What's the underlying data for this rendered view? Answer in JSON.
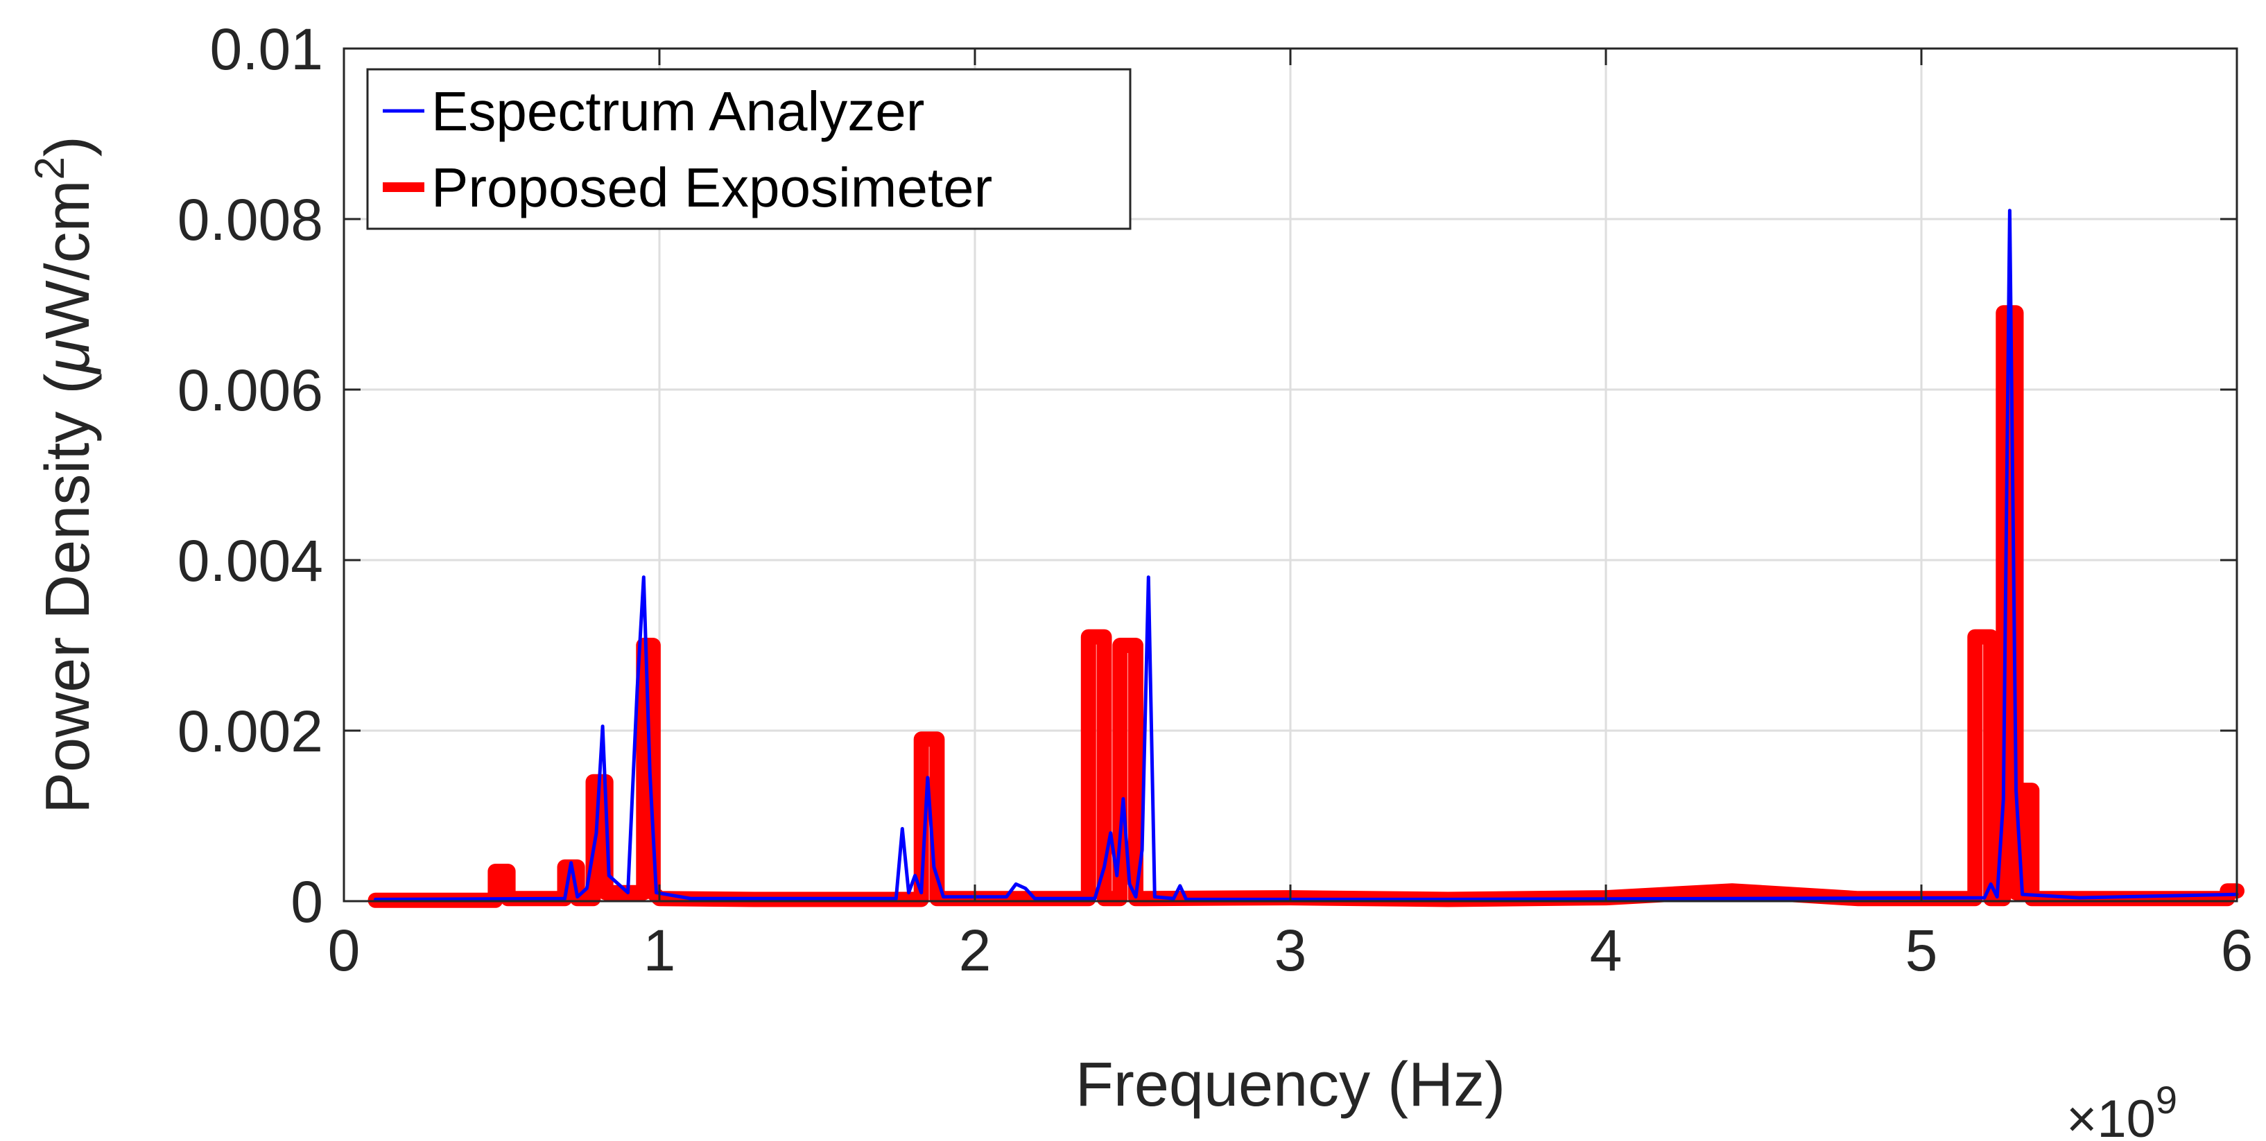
{
  "chart_data": {
    "type": "line",
    "xlabel": "Frequency (Hz)",
    "ylabel_prefix": "Power Density (",
    "ylabel_mu": "μ",
    "ylabel_unit": "W/cm",
    "ylabel_sup": "2",
    "ylabel_suffix": ")",
    "x_multiplier": "×10",
    "x_multiplier_exp": "9",
    "xlim": [
      0,
      6
    ],
    "ylim": [
      0,
      0.01
    ],
    "x_ticks": [
      0,
      1,
      2,
      3,
      4,
      5,
      6
    ],
    "x_tick_labels": [
      "0",
      "1",
      "2",
      "3",
      "4",
      "5",
      "6"
    ],
    "y_ticks": [
      0,
      0.002,
      0.004,
      0.006,
      0.008,
      0.01
    ],
    "y_tick_labels": [
      "0",
      "0.002",
      "0.004",
      "0.006",
      "0.008",
      "0.01"
    ],
    "grid": true,
    "legend_position": "top-left",
    "series": [
      {
        "name": "Espectrum Analyzer",
        "color": "#0000ff",
        "points": [
          [
            0.1,
            2e-05
          ],
          [
            0.7,
            3e-05
          ],
          [
            0.72,
            0.00045
          ],
          [
            0.74,
            5e-05
          ],
          [
            0.77,
            0.00015
          ],
          [
            0.8,
            0.0008
          ],
          [
            0.82,
            0.00205
          ],
          [
            0.84,
            0.0003
          ],
          [
            0.9,
            0.0001
          ],
          [
            0.93,
            0.0025
          ],
          [
            0.95,
            0.0038
          ],
          [
            0.97,
            0.0015
          ],
          [
            0.99,
            0.0001
          ],
          [
            1.1,
            3e-05
          ],
          [
            1.75,
            3e-05
          ],
          [
            1.77,
            0.00085
          ],
          [
            1.79,
            0.0001
          ],
          [
            1.81,
            0.0003
          ],
          [
            1.83,
            0.0001
          ],
          [
            1.85,
            0.00145
          ],
          [
            1.87,
            0.0004
          ],
          [
            1.9,
            5e-05
          ],
          [
            2.1,
            5e-05
          ],
          [
            2.13,
            0.0002
          ],
          [
            2.16,
            0.00015
          ],
          [
            2.19,
            3e-05
          ],
          [
            2.38,
            3e-05
          ],
          [
            2.41,
            0.0004
          ],
          [
            2.43,
            0.0008
          ],
          [
            2.45,
            0.0003
          ],
          [
            2.47,
            0.0012
          ],
          [
            2.49,
            0.0002
          ],
          [
            2.51,
            5e-05
          ],
          [
            2.53,
            0.0006
          ],
          [
            2.55,
            0.0038
          ],
          [
            2.57,
            5e-05
          ],
          [
            2.63,
            3e-05
          ],
          [
            2.65,
            0.00018
          ],
          [
            2.67,
            2e-05
          ],
          [
            3.5,
            2e-05
          ],
          [
            4.4,
            3e-05
          ],
          [
            5.2,
            4e-05
          ],
          [
            5.22,
            0.0002
          ],
          [
            5.24,
            5e-05
          ],
          [
            5.26,
            0.0012
          ],
          [
            5.28,
            0.0081
          ],
          [
            5.3,
            0.0013
          ],
          [
            5.32,
            8e-05
          ],
          [
            5.5,
            4e-05
          ],
          [
            6.0,
            8e-05
          ]
        ]
      },
      {
        "name": "Proposed Exposimeter",
        "color": "#ff0000",
        "points": [
          [
            0.1,
            1e-05
          ],
          [
            0.48,
            1e-05
          ],
          [
            0.48,
            0.00035
          ],
          [
            0.52,
            0.00035
          ],
          [
            0.52,
            3e-05
          ],
          [
            0.7,
            3e-05
          ],
          [
            0.7,
            0.0004
          ],
          [
            0.74,
            0.0004
          ],
          [
            0.74,
            3e-05
          ],
          [
            0.79,
            3e-05
          ],
          [
            0.79,
            0.0014
          ],
          [
            0.83,
            0.0014
          ],
          [
            0.83,
            0.0001
          ],
          [
            0.95,
            0.0001
          ],
          [
            0.95,
            0.003
          ],
          [
            0.98,
            0.003
          ],
          [
            0.98,
            0.0001
          ],
          [
            1.0,
            3e-05
          ],
          [
            1.3,
            2e-05
          ],
          [
            1.83,
            2e-05
          ],
          [
            1.83,
            0.0019
          ],
          [
            1.88,
            0.0019
          ],
          [
            1.88,
            3e-05
          ],
          [
            2.36,
            3e-05
          ],
          [
            2.36,
            0.0031
          ],
          [
            2.41,
            0.0031
          ],
          [
            2.41,
            3e-05
          ],
          [
            2.46,
            3e-05
          ],
          [
            2.46,
            0.003
          ],
          [
            2.51,
            0.003
          ],
          [
            2.51,
            3e-05
          ],
          [
            3.0,
            4e-05
          ],
          [
            3.5,
            2e-05
          ],
          [
            4.0,
            4e-05
          ],
          [
            4.4,
            0.00012
          ],
          [
            4.8,
            3e-05
          ],
          [
            5.17,
            3e-05
          ],
          [
            5.17,
            0.0031
          ],
          [
            5.22,
            0.0031
          ],
          [
            5.22,
            3e-05
          ],
          [
            5.26,
            3e-05
          ],
          [
            5.26,
            0.0069
          ],
          [
            5.3,
            0.0069
          ],
          [
            5.3,
            0.0001
          ],
          [
            5.32,
            0.0001
          ],
          [
            5.32,
            0.0013
          ],
          [
            5.35,
            0.0013
          ],
          [
            5.35,
            3e-05
          ],
          [
            5.97,
            3e-05
          ],
          [
            5.97,
            0.00012
          ],
          [
            6.0,
            0.00012
          ]
        ]
      }
    ]
  }
}
